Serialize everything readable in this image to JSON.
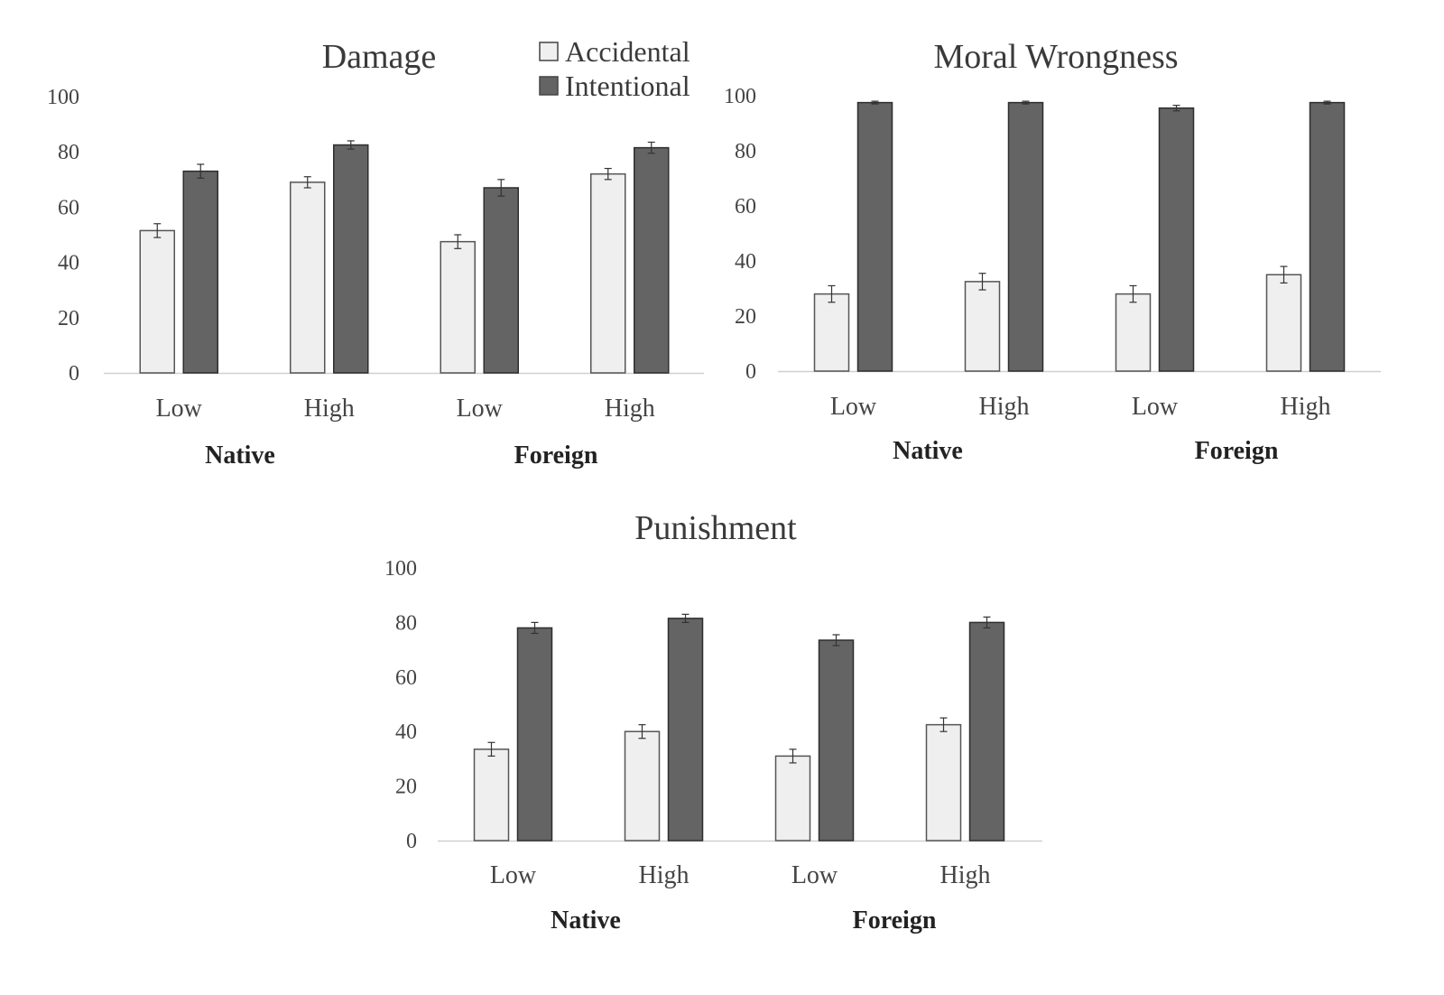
{
  "legend": {
    "items": [
      {
        "label": "Accidental",
        "color": "#efefef"
      },
      {
        "label": "Intentional",
        "color": "#646464"
      }
    ]
  },
  "chart_data": [
    {
      "type": "bar",
      "title": "Damage",
      "categories": [
        "Low",
        "High",
        "Low",
        "High"
      ],
      "groups": [
        "Native",
        "Foreign"
      ],
      "series": [
        {
          "name": "Accidental",
          "values": [
            51.5,
            69,
            47.5,
            72
          ],
          "errors": [
            2.5,
            2,
            2.5,
            2
          ]
        },
        {
          "name": "Intentional",
          "values": [
            73,
            82.5,
            67,
            81.5
          ],
          "errors": [
            2.5,
            1.5,
            3,
            2
          ]
        }
      ],
      "ylim": [
        0,
        100
      ],
      "yticks": [
        0,
        20,
        40,
        60,
        80,
        100
      ],
      "legend_position": "top-right",
      "grid": false
    },
    {
      "type": "bar",
      "title": "Moral Wrongness",
      "categories": [
        "Low",
        "High",
        "Low",
        "High"
      ],
      "groups": [
        "Native",
        "Foreign"
      ],
      "series": [
        {
          "name": "Accidental",
          "values": [
            28,
            32.5,
            28,
            35
          ],
          "errors": [
            3,
            3,
            3,
            3
          ]
        },
        {
          "name": "Intentional",
          "values": [
            97.5,
            97.5,
            95.5,
            97.5
          ],
          "errors": [
            0.5,
            0.5,
            1,
            0.5
          ]
        }
      ],
      "ylim": [
        0,
        100
      ],
      "yticks": [
        0,
        20,
        40,
        60,
        80,
        100
      ],
      "grid": false
    },
    {
      "type": "bar",
      "title": "Punishment",
      "categories": [
        "Low",
        "High",
        "Low",
        "High"
      ],
      "groups": [
        "Native",
        "Foreign"
      ],
      "series": [
        {
          "name": "Accidental",
          "values": [
            33.5,
            40,
            31,
            42.5
          ],
          "errors": [
            2.5,
            2.5,
            2.5,
            2.5
          ]
        },
        {
          "name": "Intentional",
          "values": [
            78,
            81.5,
            73.5,
            80
          ],
          "errors": [
            2,
            1.5,
            2,
            2
          ]
        }
      ],
      "ylim": [
        0,
        100
      ],
      "yticks": [
        0,
        20,
        40,
        60,
        80,
        100
      ],
      "grid": false
    }
  ]
}
